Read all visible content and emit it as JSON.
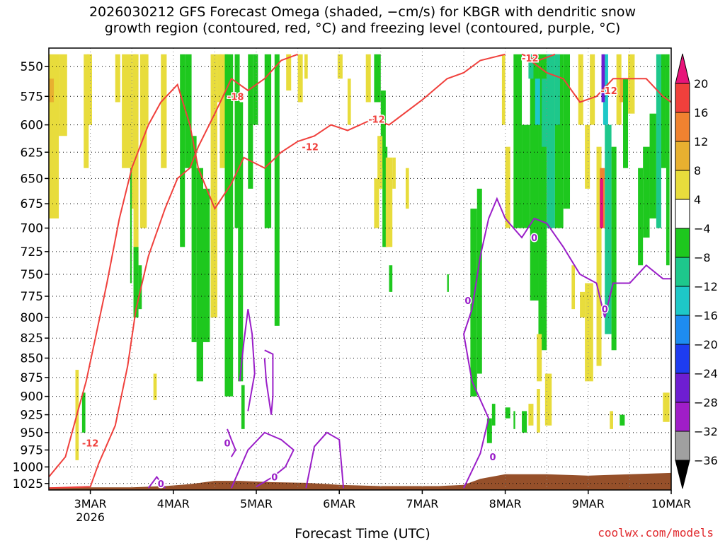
{
  "title": {
    "line1": "2026030212 GFS Forecast Omega (shaded, −cm/s) for KBGR with dendritic snow",
    "line2": "growth region (contoured, red, °C) and freezing level (contoured, purple, °C)"
  },
  "credit": "coolwx.com/models",
  "chart_data": {
    "type": "heatmap",
    "xlabel": "Forecast Time (UTC)",
    "x_ticks": [
      {
        "day": 3,
        "label": "3MAR",
        "sublabel": "2026"
      },
      {
        "day": 4,
        "label": "4MAR",
        "sublabel": ""
      },
      {
        "day": 5,
        "label": "5MAR",
        "sublabel": ""
      },
      {
        "day": 6,
        "label": "6MAR",
        "sublabel": ""
      },
      {
        "day": 7,
        "label": "7MAR",
        "sublabel": ""
      },
      {
        "day": 8,
        "label": "8MAR",
        "sublabel": ""
      },
      {
        "day": 9,
        "label": "9MAR",
        "sublabel": ""
      },
      {
        "day": 10,
        "label": "10MAR",
        "sublabel": ""
      }
    ],
    "xlim_days": [
      2.5,
      10.0
    ],
    "y_ticks": [
      550,
      575,
      600,
      625,
      650,
      675,
      700,
      725,
      750,
      775,
      800,
      825,
      850,
      875,
      900,
      925,
      950,
      975,
      1000,
      1025
    ],
    "ylim_hpa": [
      535,
      1035
    ],
    "y_scale": "log",
    "grid": "dotted",
    "colorbar": {
      "levels": [
        -36,
        -32,
        -28,
        -24,
        -20,
        -16,
        -12,
        -8,
        -4,
        4,
        8,
        12,
        16,
        20
      ],
      "labels": [
        "20",
        "16",
        "12",
        "8",
        "4",
        "−4",
        "−8",
        "−12",
        "−16",
        "−20",
        "−24",
        "−28",
        "−32",
        "−36"
      ],
      "colors": [
        {
          "range": [
            16,
            20
          ],
          "color": "#f0403c"
        },
        {
          "range": [
            12,
            16
          ],
          "color": "#f08230"
        },
        {
          "range": [
            8,
            12
          ],
          "color": "#e8b030"
        },
        {
          "range": [
            4,
            8
          ],
          "color": "#e8dc3c"
        },
        {
          "range": [
            -4,
            4
          ],
          "color": "#ffffff"
        },
        {
          "range": [
            -8,
            -4
          ],
          "color": "#1ec81e"
        },
        {
          "range": [
            -12,
            -8
          ],
          "color": "#1ec88c"
        },
        {
          "range": [
            -16,
            -12
          ],
          "color": "#1ec8c8"
        },
        {
          "range": [
            -20,
            -16
          ],
          "color": "#1e8cf0"
        },
        {
          "range": [
            -24,
            -20
          ],
          "color": "#1e3cf0"
        },
        {
          "range": [
            -28,
            -24
          ],
          "color": "#6e1ed2"
        },
        {
          "range": [
            -32,
            -28
          ],
          "color": "#a01ec8"
        },
        {
          "range": [
            -36,
            -32
          ],
          "color": "#a0a0a0"
        }
      ],
      "over_color": "#e8147a",
      "under_color": "#000000"
    },
    "contour_labels": {
      "dgz": [
        "-18",
        "-12",
        "-12",
        "-12",
        "-12",
        "-12"
      ],
      "freezing": [
        "0",
        "0",
        "0",
        "0",
        "0",
        "0",
        "0"
      ]
    },
    "dgz_color": "#f0403c",
    "freezing_color": "#9a1ec8",
    "terrain_color": "#96502a"
  }
}
